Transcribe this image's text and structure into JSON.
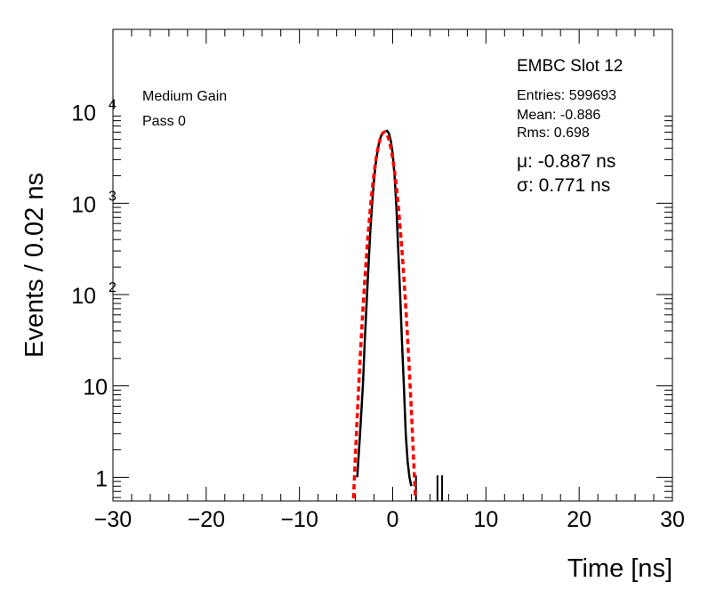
{
  "chart_data": {
    "type": "histogram",
    "title": "EMBC Slot 12",
    "xlabel": "Time [ns]",
    "ylabel": "Events / 0.02 ns",
    "xlim": [
      -30,
      30
    ],
    "ylim": [
      0.55,
      80000
    ],
    "yscale": "log",
    "x_ticks": [
      -30,
      -20,
      -10,
      0,
      10,
      20,
      30
    ],
    "x_tick_labels": [
      "−30",
      "−20",
      "−10",
      "0",
      "10",
      "20",
      "30"
    ],
    "y_ticks": [
      {
        "value": 1,
        "base": "1",
        "exp": ""
      },
      {
        "value": 10,
        "base": "10",
        "exp": ""
      },
      {
        "value": 100,
        "base": "10",
        "exp": "2"
      },
      {
        "value": 1000,
        "base": "10",
        "exp": "3"
      },
      {
        "value": 10000,
        "base": "10",
        "exp": "4"
      }
    ],
    "annotations": [
      "Medium Gain",
      "Pass 0"
    ],
    "stats": {
      "entries_label": "Entries: 599693",
      "mean_label": "Mean: -0.886",
      "rms_label": "Rms: 0.698"
    },
    "fit": {
      "mu_label": "μ: -0.887 ns",
      "sigma_label": "σ: 0.771 ns",
      "mu": -0.887,
      "sigma": 0.771,
      "amplitude": 6000,
      "color": "#ff0000"
    },
    "series": [
      {
        "color": "#000000",
        "x": [
          -3.8,
          -3.5,
          -3.2,
          -3.0,
          -2.8,
          -2.6,
          -2.4,
          -2.2,
          -2.0,
          -1.8,
          -1.6,
          -1.4,
          -1.2,
          -1.0,
          -0.8,
          -0.6,
          -0.4,
          -0.2,
          0.0,
          0.2,
          0.4,
          0.6,
          0.8,
          1.0,
          1.2,
          1.4,
          1.6,
          1.8,
          2.0
        ],
        "y": [
          1,
          3,
          10,
          30,
          80,
          200,
          500,
          1000,
          1800,
          2800,
          3900,
          4900,
          5600,
          6000,
          6100,
          6200,
          5800,
          4800,
          3500,
          2000,
          900,
          300,
          100,
          30,
          10,
          3,
          1.5,
          1,
          0.8
        ]
      }
    ],
    "outliers_x": [
      2.5,
      4.8,
      5.3
    ]
  }
}
